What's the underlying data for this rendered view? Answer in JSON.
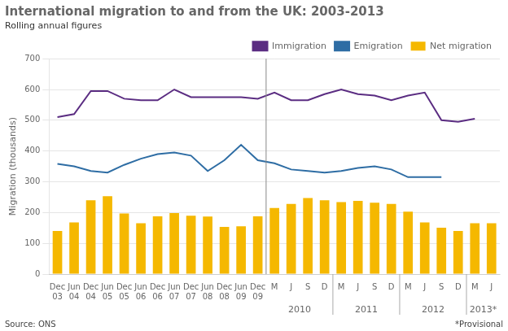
{
  "chart_data": {
    "type": "bar",
    "title": "International migration to and from the UK: 2003-2013",
    "subtitle": "Rolling annual figures",
    "ylabel": "Migration (thousands)",
    "source": "Source: ONS",
    "note": "*Provisional",
    "categories": [
      "Dec\n03",
      "Jun\n04",
      "Dec\n04",
      "Jun\n05",
      "Dec\n05",
      "Jun\n06",
      "Dec\n06",
      "Jun\n07",
      "Dec\n07",
      "Jun\n08",
      "Dec\n08",
      "Jun\n09",
      "Dec\n09",
      "M",
      "J",
      "S",
      "D",
      "M",
      "J",
      "S",
      "D",
      "M",
      "J",
      "S",
      "D",
      "M",
      "J"
    ],
    "year_labels": [
      "2010",
      "2011",
      "2012",
      "2013*"
    ],
    "series": [
      {
        "name": "Immigration",
        "type": "line",
        "color": "#5b2d82",
        "values": [
          510,
          520,
          595,
          595,
          570,
          565,
          565,
          600,
          575,
          575,
          575,
          575,
          570,
          590,
          565,
          565,
          585,
          600,
          585,
          580,
          565,
          580,
          590,
          500,
          495,
          505,
          null
        ]
      },
      {
        "name": "Emigration",
        "type": "line",
        "color": "#2e6da4",
        "values": [
          358,
          350,
          335,
          330,
          355,
          375,
          390,
          395,
          385,
          335,
          370,
          420,
          370,
          360,
          340,
          335,
          330,
          335,
          345,
          350,
          340,
          315,
          315,
          315,
          null,
          null,
          null
        ]
      },
      {
        "name": "Net migration",
        "type": "bar",
        "color": "#f5b800",
        "values": [
          140,
          168,
          240,
          253,
          197,
          165,
          188,
          198,
          190,
          187,
          153,
          155,
          188,
          215,
          228,
          247,
          240,
          234,
          238,
          232,
          228,
          203,
          168,
          151,
          140,
          165,
          165
        ]
      }
    ],
    "ylim": [
      0,
      700
    ],
    "yticks": [
      0,
      100,
      200,
      300,
      400,
      500,
      600,
      700
    ],
    "grid": true,
    "legend": "upper right"
  }
}
